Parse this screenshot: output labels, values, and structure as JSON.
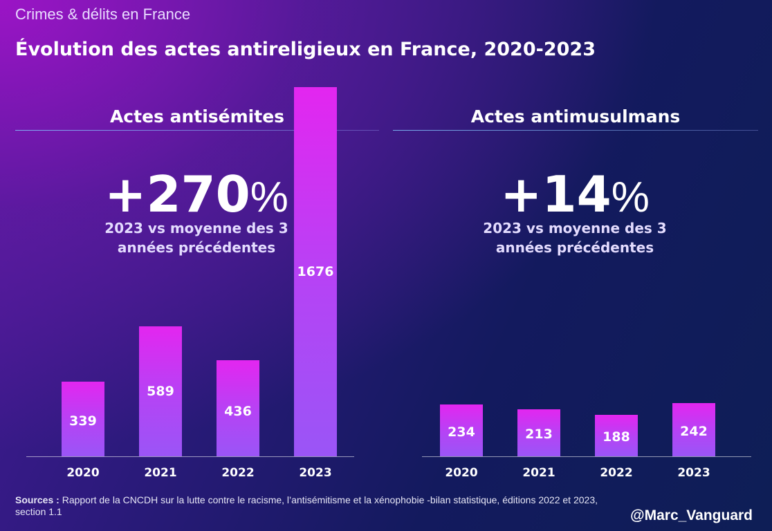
{
  "header": {
    "kicker": "Crimes & délits en France",
    "title": "Évolution des actes antireligieux en France, 2020-2023"
  },
  "chart_data": [
    {
      "type": "bar",
      "title": "Actes antisémites",
      "headline_value": "+270",
      "headline_unit": "%",
      "headline_caption_line1": "2023 vs moyenne des 3",
      "headline_caption_line2": "années précédentes",
      "categories": [
        "2020",
        "2021",
        "2022",
        "2023"
      ],
      "values": [
        339,
        589,
        436,
        1676
      ],
      "data_labels": [
        "339",
        "589",
        "436",
        "1676"
      ],
      "ylim": [
        0,
        1720
      ]
    },
    {
      "type": "bar",
      "title": "Actes antimusulmans",
      "headline_value": "+14",
      "headline_unit": "%",
      "headline_caption_line1": "2023 vs moyenne des 3",
      "headline_caption_line2": "années précédentes",
      "categories": [
        "2020",
        "2021",
        "2022",
        "2023"
      ],
      "values": [
        234,
        213,
        188,
        242
      ],
      "data_labels": [
        "234",
        "213",
        "188",
        "242"
      ],
      "ylim": [
        0,
        1720
      ]
    }
  ],
  "footer": {
    "sources_label": "Sources :",
    "sources_text": " Rapport  de la CNCDH sur la lutte contre le racisme, l’antisémitisme et la xénophobie -bilan statistique, éditions 2022 et 2023, section 1.1",
    "handle": "@Marc_Vanguard"
  },
  "colors": {
    "bar_top": "#e326f0",
    "bar_bottom": "#9a55f6",
    "background_dark": "#0e1e56",
    "background_accent": "#a014c8"
  }
}
